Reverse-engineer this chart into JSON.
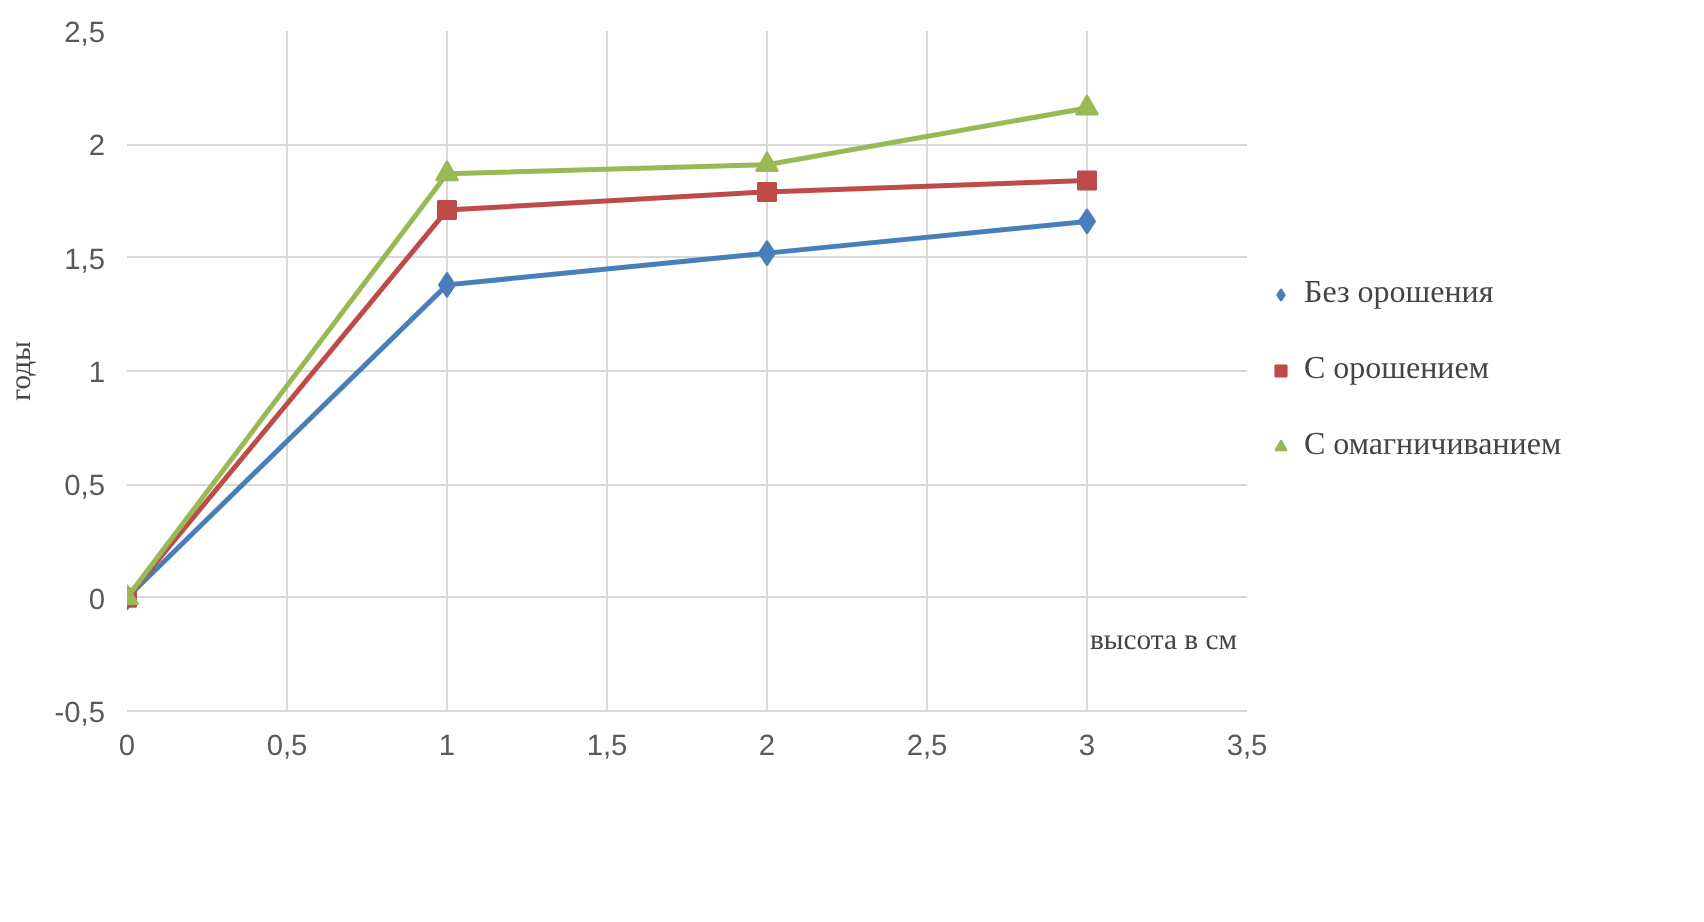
{
  "chart_data": {
    "type": "line",
    "ylabel": "годы",
    "xlabel": "высота в см",
    "x": [
      0,
      1,
      2,
      3
    ],
    "series": [
      {
        "name": "Без орошения",
        "color": "#4a7ebb",
        "marker": "diamond",
        "values": [
          0,
          1.38,
          1.52,
          1.66
        ]
      },
      {
        "name": "С орошением",
        "color": "#be4b48",
        "marker": "square",
        "values": [
          0,
          1.71,
          1.79,
          1.84
        ]
      },
      {
        "name": "С омагничиванием",
        "color": "#98b954",
        "marker": "triangle",
        "values": [
          0,
          1.87,
          1.91,
          2.16
        ]
      }
    ],
    "xlim": [
      0,
      3.5
    ],
    "xticks": [
      0,
      {
        "value": 0.5,
        "label": "0,5"
      },
      1,
      {
        "value": 1.5,
        "label": "1,5"
      },
      2,
      {
        "value": 2.5,
        "label": "2,5"
      },
      3,
      {
        "value": 3.5,
        "label": "3,5"
      }
    ],
    "ylim": [
      -0.5,
      2.5
    ],
    "yticks": [
      {
        "value": -0.5,
        "label": "-0,5"
      },
      0,
      {
        "value": 0.5,
        "label": "0,5"
      },
      1,
      {
        "value": 1.5,
        "label": "1,5"
      },
      2,
      {
        "value": 2.5,
        "label": "2,5"
      }
    ],
    "grid": true,
    "legend": "right",
    "line_style": "solid"
  }
}
